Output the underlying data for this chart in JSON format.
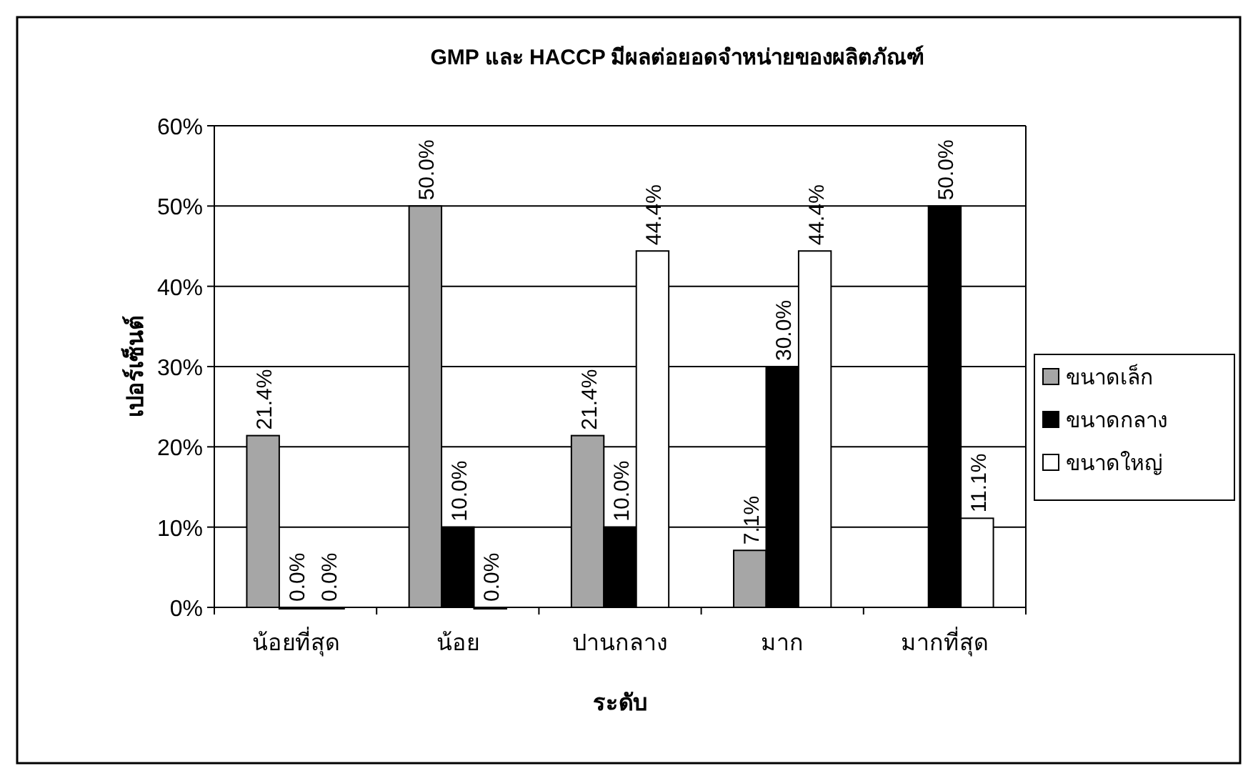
{
  "chart_data": {
    "type": "bar",
    "title": "GMP และ HACCP มีผลต่อยอดจำหน่ายของผลิตภัณฑ์",
    "xlabel": "ระดับ",
    "ylabel": "เปอร์เซ็นต์",
    "categories": [
      "น้อยที่สุด",
      "น้อย",
      "ปานกลาง",
      "มาก",
      "มากที่สุด"
    ],
    "series": [
      {
        "name": "ขนาดเล็ก",
        "color": "#a6a6a6",
        "values": [
          21.4,
          50.0,
          21.4,
          7.1,
          null
        ],
        "value_labels": [
          "21.4%",
          "50.0%",
          "21.4%",
          "7.1%",
          null
        ]
      },
      {
        "name": "ขนาดกลาง",
        "color": "#000000",
        "values": [
          0,
          10.0,
          10.0,
          30.0,
          50.0
        ],
        "value_labels": [
          "0.0%",
          "10.0%",
          "10.0%",
          "30.0%",
          "50.0%"
        ]
      },
      {
        "name": "ขนาดใหญ่",
        "color": "#ffffff",
        "values": [
          0,
          0,
          44.4,
          44.4,
          11.1
        ],
        "value_labels": [
          "0.0%",
          "0.0%",
          "44.4%",
          "44.4%",
          "11.1%"
        ]
      }
    ],
    "ylim": [
      0,
      60
    ],
    "yticks": [
      {
        "value": 0,
        "label": "0%"
      },
      {
        "value": 10,
        "label": "10%"
      },
      {
        "value": 20,
        "label": "20%"
      },
      {
        "value": 30,
        "label": "30%"
      },
      {
        "value": 40,
        "label": "40%"
      },
      {
        "value": 50,
        "label": "50%"
      },
      {
        "value": 60,
        "label": "60%"
      }
    ],
    "grid": "y",
    "legend": "right"
  }
}
